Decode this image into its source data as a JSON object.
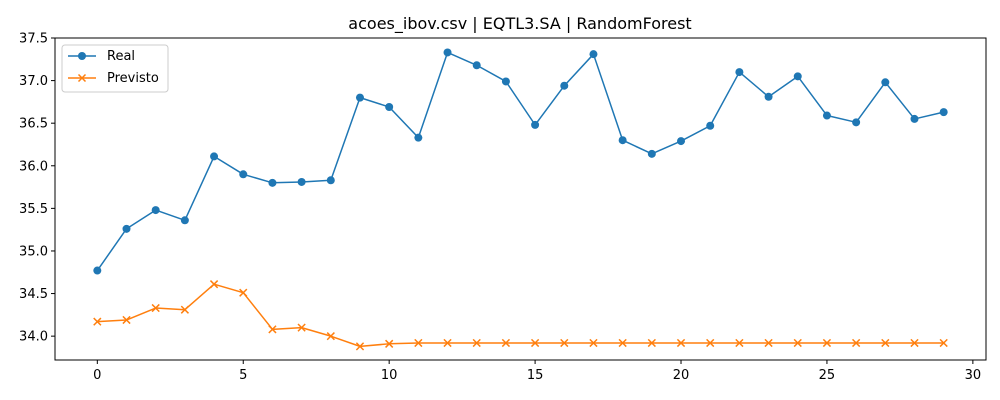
{
  "chart_data": {
    "type": "line",
    "title": "acoes_ibov.csv | EQTL3.SA | RandomForest",
    "xlabel": "",
    "ylabel": "",
    "x": [
      0,
      1,
      2,
      3,
      4,
      5,
      6,
      7,
      8,
      9,
      10,
      11,
      12,
      13,
      14,
      15,
      16,
      17,
      18,
      19,
      20,
      21,
      22,
      23,
      24,
      25,
      26,
      27,
      28,
      29
    ],
    "xlim": [
      -1.45,
      30.45
    ],
    "ylim": [
      33.72,
      37.5
    ],
    "xticks": [
      0,
      5,
      10,
      15,
      20,
      25,
      30
    ],
    "yticks": [
      34.0,
      34.5,
      35.0,
      35.5,
      36.0,
      36.5,
      37.0,
      37.5
    ],
    "grid": false,
    "legend_position": "top-left",
    "series": [
      {
        "name": "Real",
        "color": "#1f77b4",
        "marker": "circle",
        "values": [
          34.77,
          35.26,
          35.48,
          35.36,
          36.11,
          35.9,
          35.8,
          35.81,
          35.83,
          36.8,
          36.69,
          36.33,
          37.33,
          37.18,
          36.99,
          36.48,
          36.94,
          37.31,
          36.3,
          36.14,
          36.29,
          36.47,
          37.1,
          36.81,
          37.05,
          36.59,
          36.51,
          36.98,
          36.55,
          36.63
        ]
      },
      {
        "name": "Previsto",
        "color": "#ff7f0e",
        "marker": "x",
        "values": [
          34.17,
          34.19,
          34.33,
          34.31,
          34.61,
          34.51,
          34.08,
          34.1,
          34.0,
          33.88,
          33.91,
          33.92,
          33.92,
          33.92,
          33.92,
          33.92,
          33.92,
          33.92,
          33.92,
          33.92,
          33.92,
          33.92,
          33.92,
          33.92,
          33.92,
          33.92,
          33.92,
          33.92,
          33.92,
          33.92
        ]
      }
    ]
  }
}
